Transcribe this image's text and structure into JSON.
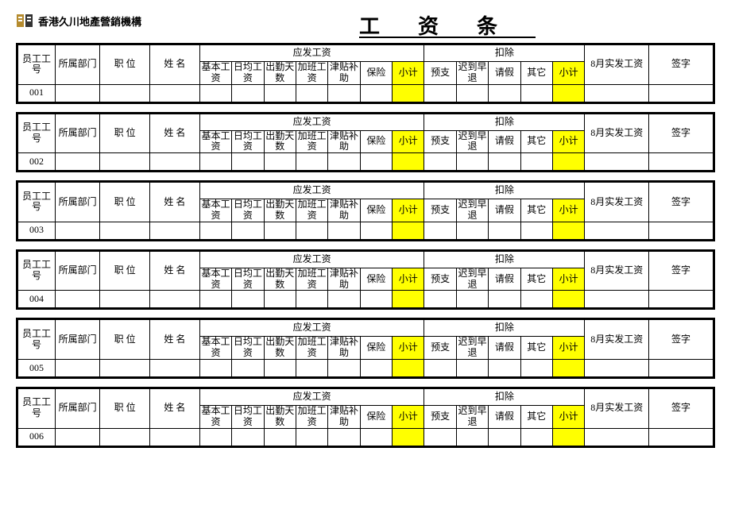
{
  "header": {
    "company": "香港久川地產營銷機構",
    "title": "工资条",
    "logo_color_a": "#b58b2e",
    "logo_color_b": "#333333"
  },
  "labels": {
    "emp_id": "员工工号",
    "dept": "所属部门",
    "position": "职 位",
    "name": "姓 名",
    "payable_group": "应发工资",
    "basic": "基本工资",
    "daily": "日均工资",
    "attend": "出勤天数",
    "overtime": "加班工资",
    "allowance": "津贴补助",
    "insurance": "保险",
    "subtotal1": "小计",
    "deduct_group": "扣除",
    "advance": "预支",
    "late": "迟到早退",
    "leave": "请假",
    "other": "其它",
    "subtotal2": "小计",
    "net": "8月实发工资",
    "sign": "签字"
  },
  "slips": [
    {
      "id": "001"
    },
    {
      "id": "002"
    },
    {
      "id": "003"
    },
    {
      "id": "004"
    },
    {
      "id": "005"
    },
    {
      "id": "006"
    }
  ],
  "style": {
    "highlight_color": "#ffff00",
    "border_color": "#000000",
    "background": "#ffffff",
    "font_size_body": 12,
    "font_size_title": 26
  }
}
